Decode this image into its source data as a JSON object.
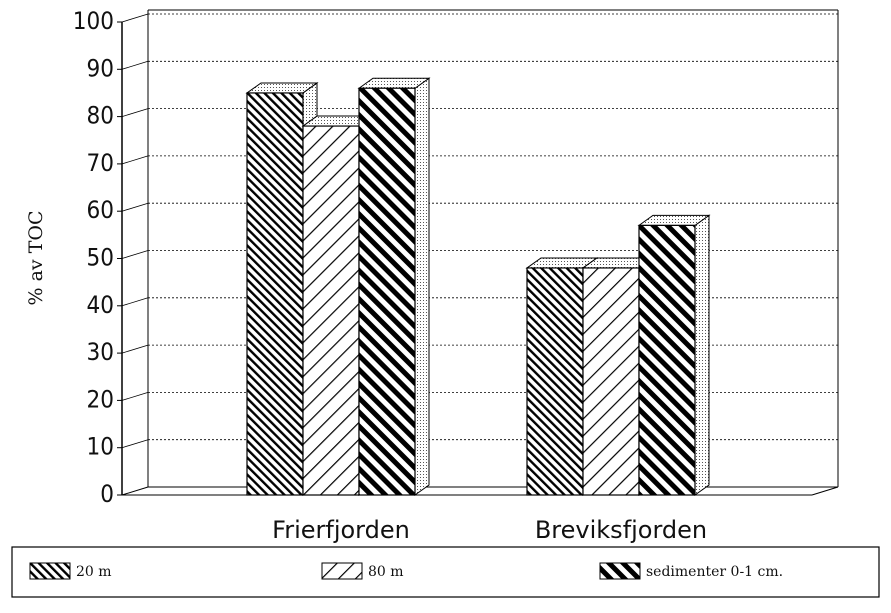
{
  "chart_data": {
    "type": "bar",
    "ylabel": "% av TOC",
    "categories": [
      "Frierfjorden",
      "Breviksfjorden"
    ],
    "series": [
      {
        "name": "20 m",
        "color": "#000000",
        "values": [
          85,
          48
        ]
      },
      {
        "name": "80 m",
        "color": "#000000",
        "values": [
          78,
          48
        ]
      },
      {
        "name": "sedimenter 0-1 cm.",
        "color": "#000000",
        "values": [
          86,
          57
        ]
      }
    ],
    "ylim": [
      0,
      100
    ],
    "yticks": [
      0,
      10,
      20,
      30,
      40,
      50,
      60,
      70,
      80,
      90,
      100
    ],
    "grid": true,
    "legend": "bottom"
  }
}
